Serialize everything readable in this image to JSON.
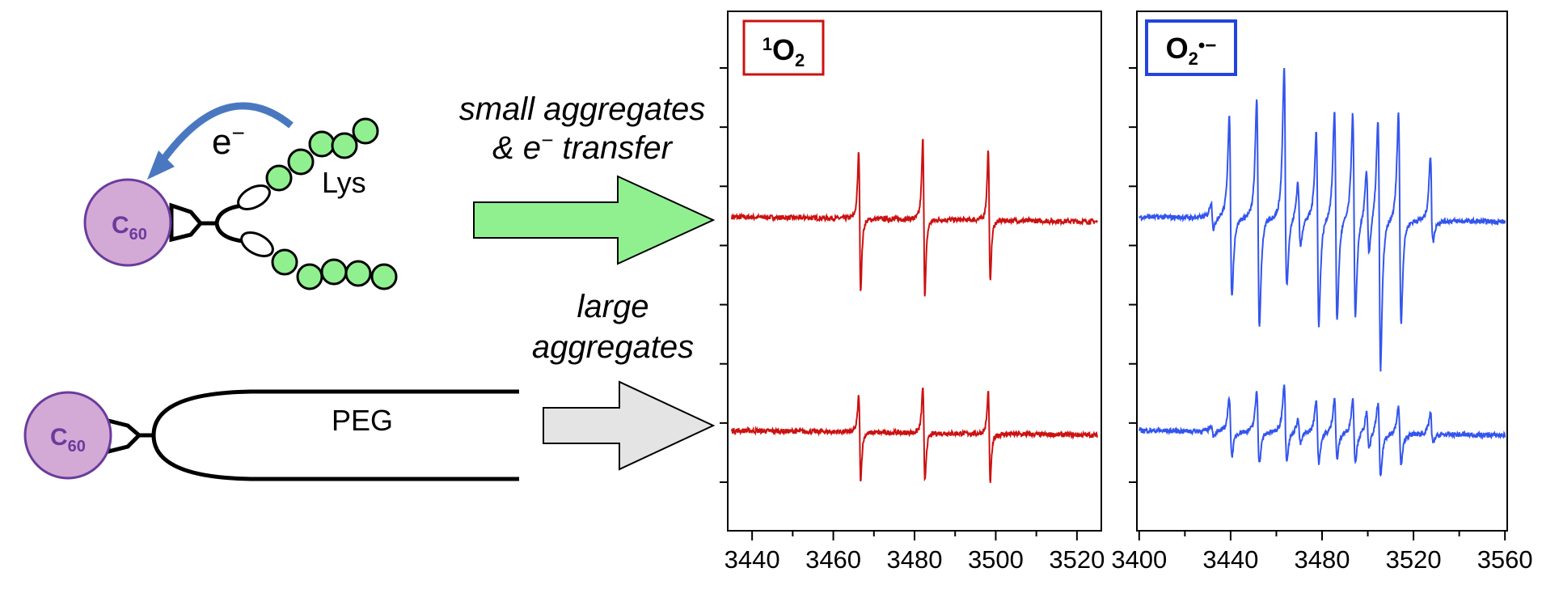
{
  "diagram": {
    "top_molecule": {
      "core_label": "C",
      "core_sub": "60",
      "chain_label": "Lys",
      "electron_label": "e",
      "electron_sup": "−"
    },
    "bottom_molecule": {
      "core_label": "C",
      "core_sub": "60",
      "chain_label": "PEG"
    },
    "arrow_top": {
      "line1": "small aggregates",
      "line2_pre": "& e",
      "line2_sup": "−",
      "line2_post": " transfer",
      "color": "#90f090"
    },
    "arrow_bottom": {
      "line1": "large",
      "line2": "aggregates",
      "color": "#e4e4e4"
    }
  },
  "chart_data": [
    {
      "type": "line",
      "title_sup": "1",
      "title_main": "O",
      "title_sub": "2",
      "title_box_color": "#cc1111",
      "line_color": "#cc1111",
      "xlim": [
        3434,
        3526
      ],
      "xticks": [
        3440,
        3460,
        3480,
        3500,
        3520
      ],
      "x_minor_step": 10,
      "y_ticks_count": 8,
      "peaks": [
        3466.5,
        3482.3,
        3498.4
      ],
      "traces": [
        {
          "amplitudes_up": [
            98,
            118,
            104
          ],
          "amplitudes_down": [
            106,
            112,
            88
          ]
        },
        {
          "amplitudes_up": [
            54,
            68,
            62
          ],
          "amplitudes_down": [
            70,
            72,
            72
          ]
        }
      ]
    },
    {
      "type": "line",
      "title_main": "O",
      "title_sub": "2",
      "title_sup": "•−",
      "title_box_color": "#2244dd",
      "line_color": "#3355ee",
      "xlim": [
        3399,
        3561
      ],
      "xticks": [
        3400,
        3440,
        3480,
        3520,
        3560
      ],
      "x_minor_step": 20,
      "y_ticks_count": 8,
      "peaks": [
        3432,
        3440,
        3452,
        3464,
        3470,
        3478,
        3486,
        3494,
        3500,
        3505,
        3514,
        3528
      ],
      "traces": [
        {
          "amplitudes_up": [
            22,
            150,
            176,
            222,
            55,
            128,
            160,
            155,
            70,
            145,
            160,
            95
          ],
          "amplitudes_down": [
            18,
            116,
            160,
            98,
            40,
            156,
            150,
            145,
            50,
            218,
            150,
            30
          ]
        },
        {
          "amplitudes_up": [
            8,
            50,
            60,
            72,
            20,
            48,
            52,
            50,
            30,
            45,
            40,
            32
          ],
          "amplitudes_down": [
            6,
            36,
            46,
            40,
            16,
            44,
            38,
            42,
            22,
            64,
            46,
            12
          ]
        }
      ]
    }
  ]
}
